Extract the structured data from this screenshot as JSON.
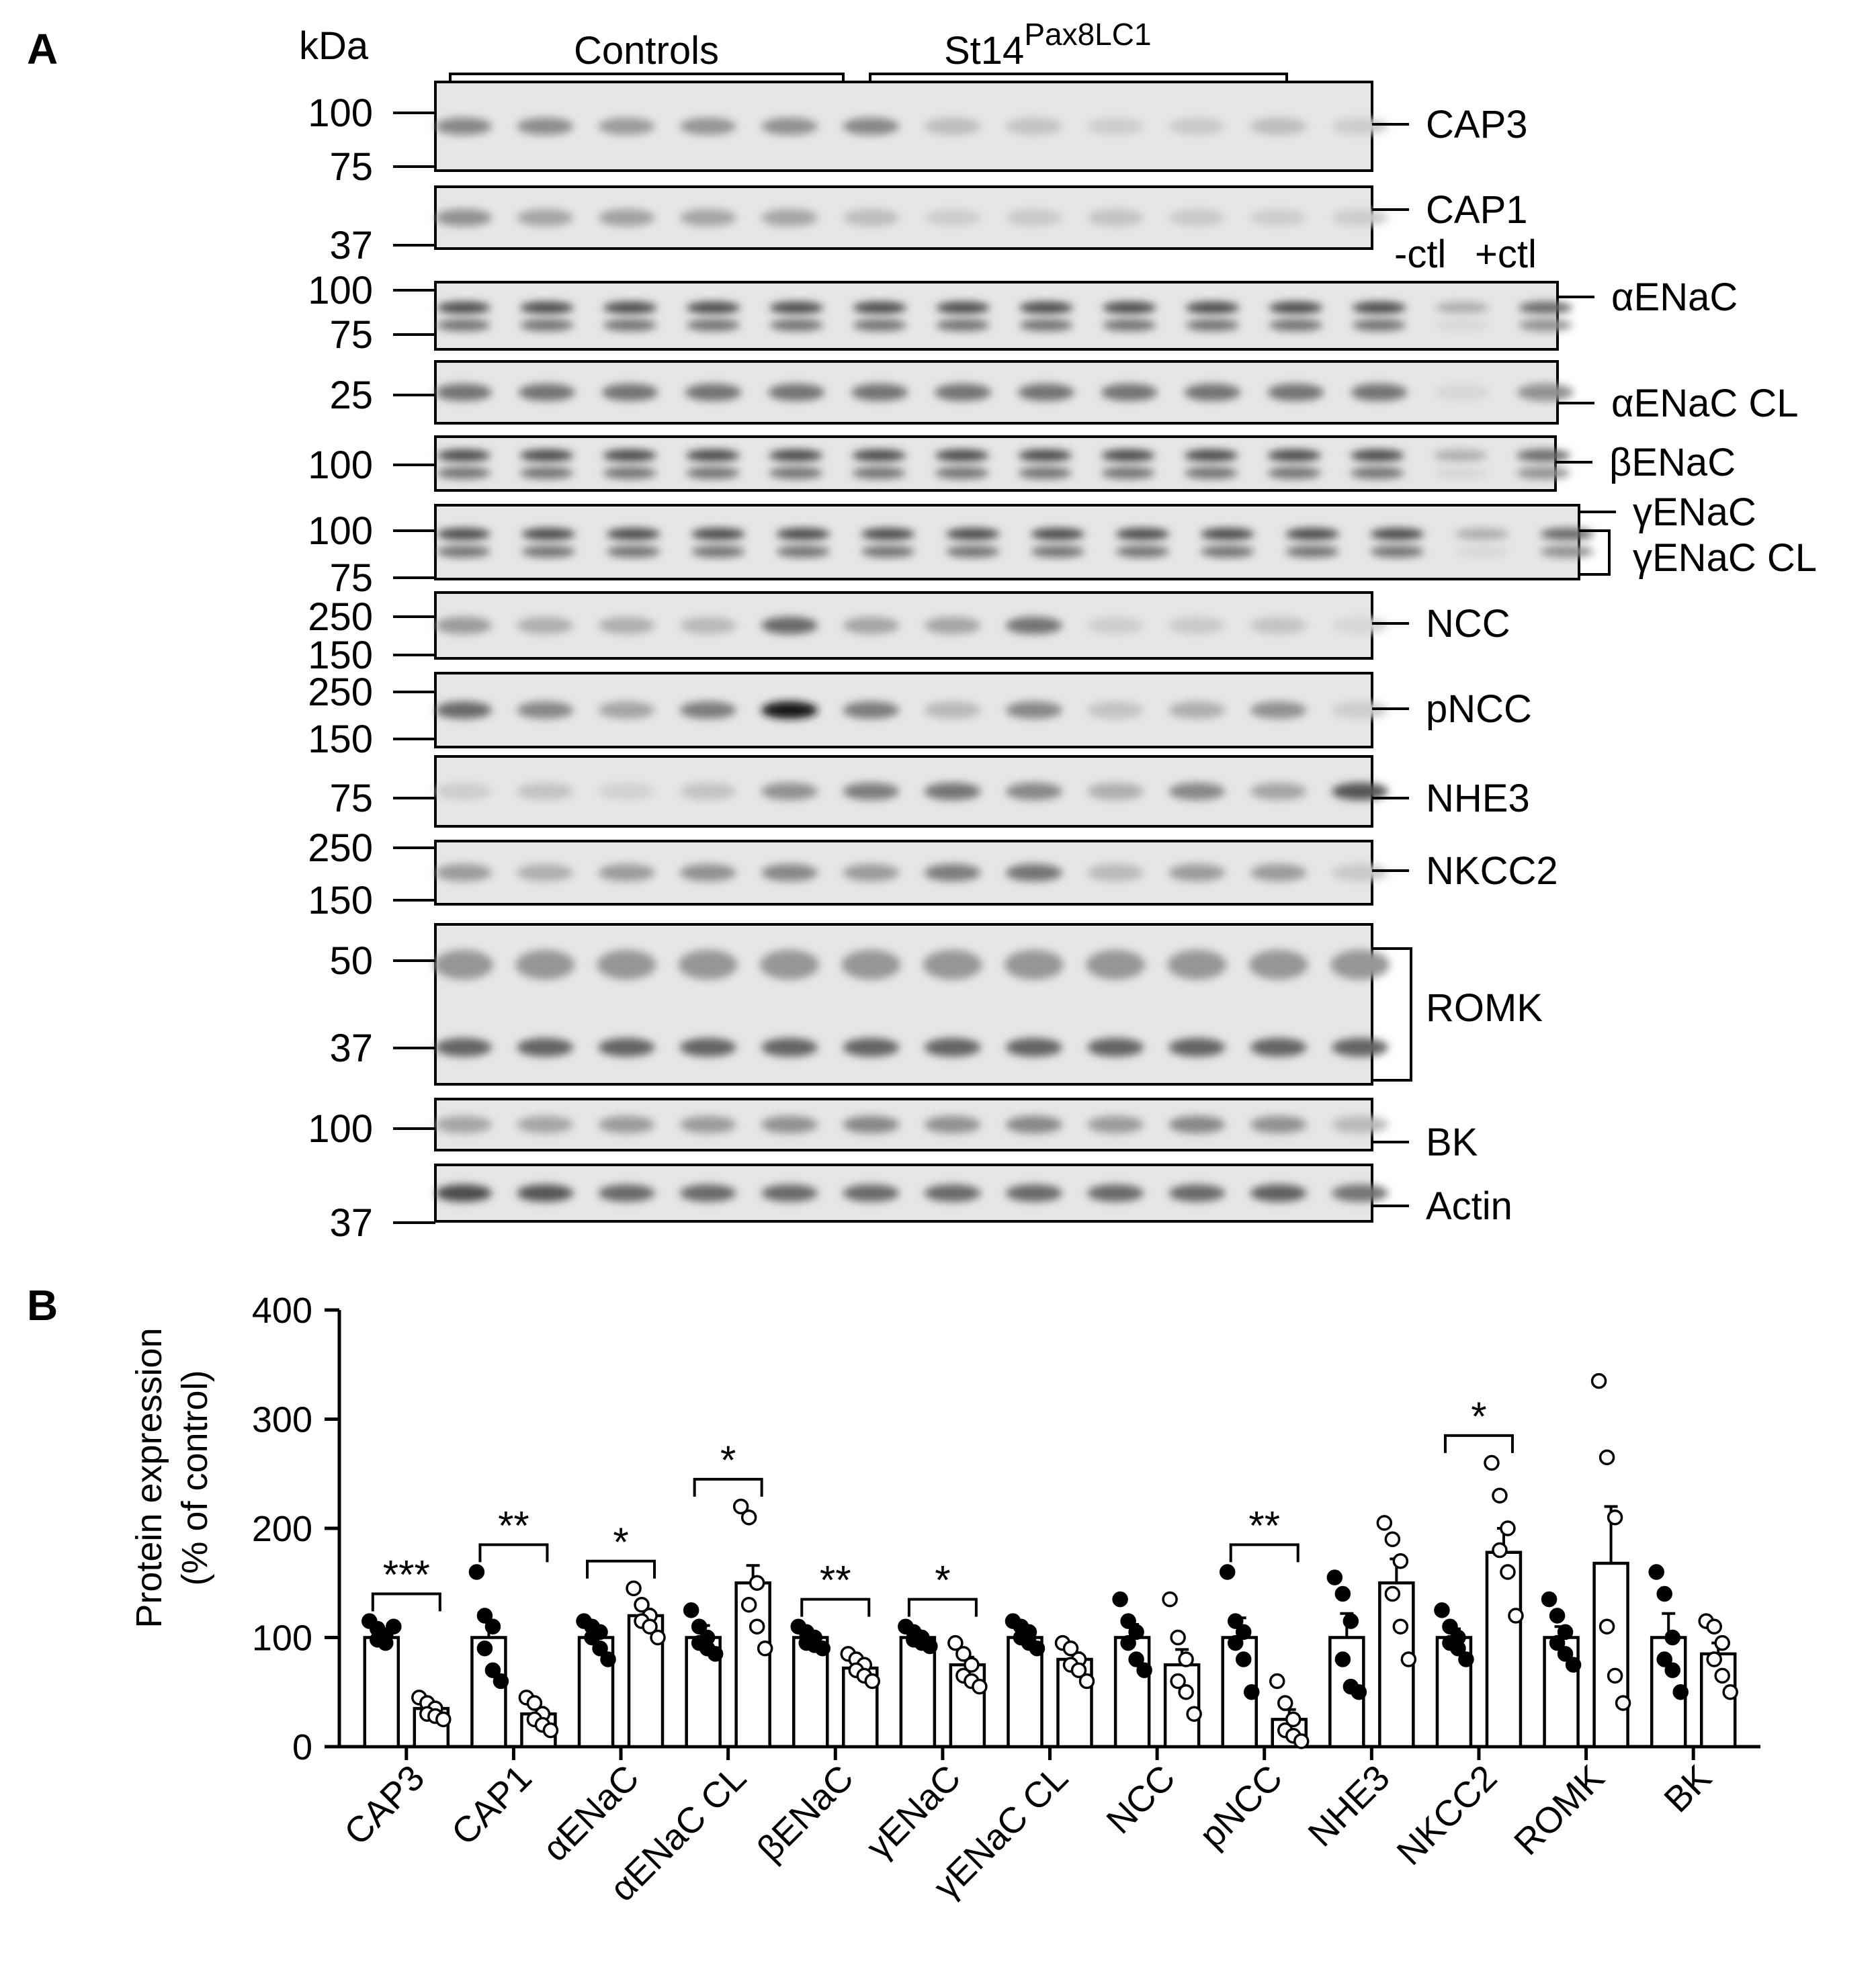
{
  "panel_a": {
    "label": "A",
    "kda_label": "kDa",
    "group_controls": "Controls",
    "group_mutant_base": "St14",
    "group_mutant_sup": "Pax8LC1",
    "neg_ctl": "-ctl",
    "pos_ctl": "+ctl",
    "blots": [
      {
        "name": "CAP3",
        "markers": [
          "100",
          "75"
        ]
      },
      {
        "name": "CAP1",
        "markers": [
          "37"
        ]
      },
      {
        "name": "αENaC",
        "markers": [
          "100",
          "75"
        ]
      },
      {
        "name": "αENaC CL",
        "markers": [
          "25"
        ]
      },
      {
        "name": "βENaC",
        "markers": [
          "100"
        ]
      },
      {
        "name": "γENaC",
        "markers": [
          "100",
          "75"
        ]
      },
      {
        "name": "γENaC CL",
        "markers": []
      },
      {
        "name": "NCC",
        "markers": [
          "250",
          "150"
        ]
      },
      {
        "name": "pNCC",
        "markers": [
          "250",
          "150"
        ]
      },
      {
        "name": "NHE3",
        "markers": [
          "75"
        ]
      },
      {
        "name": "NKCC2",
        "markers": [
          "250",
          "150"
        ]
      },
      {
        "name": "ROMK",
        "markers": [
          "50",
          "37"
        ]
      },
      {
        "name": "BK",
        "markers": [
          "100"
        ]
      },
      {
        "name": "Actin",
        "markers": [
          "37"
        ]
      }
    ],
    "band_intensity": {
      "CAP3": [
        0.45,
        0.42,
        0.35,
        0.38,
        0.4,
        0.45,
        0.18,
        0.15,
        0.1,
        0.12,
        0.18,
        0.1
      ],
      "CAP1": [
        0.4,
        0.3,
        0.32,
        0.3,
        0.3,
        0.18,
        0.1,
        0.12,
        0.15,
        0.12,
        0.1,
        0.1
      ],
      "NCC": [
        0.35,
        0.25,
        0.25,
        0.2,
        0.6,
        0.3,
        0.3,
        0.55,
        0.1,
        0.12,
        0.15,
        0.05
      ],
      "pNCC": [
        0.6,
        0.45,
        0.3,
        0.5,
        1.0,
        0.5,
        0.2,
        0.45,
        0.15,
        0.25,
        0.4,
        0.1
      ],
      "NHE3": [
        0.1,
        0.15,
        0.08,
        0.15,
        0.4,
        0.5,
        0.55,
        0.45,
        0.25,
        0.45,
        0.3,
        0.7
      ],
      "NKCC2": [
        0.35,
        0.25,
        0.35,
        0.4,
        0.45,
        0.35,
        0.5,
        0.55,
        0.2,
        0.35,
        0.35,
        0.12
      ],
      "BK": [
        0.3,
        0.3,
        0.35,
        0.35,
        0.4,
        0.45,
        0.4,
        0.45,
        0.35,
        0.45,
        0.4,
        0.2
      ],
      "Actin": [
        0.75,
        0.7,
        0.6,
        0.6,
        0.6,
        0.6,
        0.6,
        0.6,
        0.6,
        0.6,
        0.65,
        0.55
      ]
    }
  },
  "panel_b": {
    "label": "B"
  },
  "chart_data": {
    "type": "bar",
    "ylabel_line1": "Protein expression",
    "ylabel_line2": "(% of control)",
    "ylim": [
      0,
      400
    ],
    "yticks": [
      0,
      100,
      200,
      300,
      400
    ],
    "categories": [
      "CAP3",
      "CAP1",
      "αENaC",
      "αENaC CL",
      "βENaC",
      "γENaC",
      "γENaC CL",
      "NCC",
      "pNCC",
      "NHE3",
      "NKCC2",
      "ROMK",
      "BK"
    ],
    "series": [
      {
        "values": [
          100,
          100,
          100,
          100,
          100,
          100,
          100,
          100,
          100,
          100,
          100,
          100,
          100
        ],
        "sem": [
          6,
          15,
          9,
          11,
          5,
          5,
          6,
          12,
          18,
          22,
          8,
          10,
          22
        ],
        "points": [
          [
            115,
            108,
            102,
            98,
            95,
            110
          ],
          [
            160,
            120,
            110,
            90,
            70,
            60
          ],
          [
            115,
            110,
            105,
            100,
            90,
            80
          ],
          [
            125,
            110,
            100,
            95,
            90,
            85
          ],
          [
            110,
            105,
            100,
            95,
            93,
            90
          ],
          [
            110,
            105,
            100,
            98,
            95,
            92
          ],
          [
            115,
            110,
            105,
            100,
            95,
            90
          ],
          [
            135,
            115,
            105,
            95,
            80,
            70
          ],
          [
            160,
            115,
            105,
            95,
            80,
            50
          ],
          [
            155,
            140,
            115,
            80,
            55,
            50
          ],
          [
            125,
            110,
            100,
            95,
            90,
            80
          ],
          [
            135,
            120,
            105,
            95,
            85,
            75
          ],
          [
            160,
            140,
            100,
            80,
            70,
            50
          ]
        ]
      },
      {
        "values": [
          35,
          30,
          120,
          150,
          72,
          75,
          80,
          75,
          25,
          150,
          178,
          168,
          85
        ],
        "sem": [
          5,
          6,
          6,
          16,
          5,
          7,
          6,
          14,
          9,
          22,
          22,
          52,
          10
        ],
        "points": [
          [
            45,
            40,
            35,
            30,
            28,
            25
          ],
          [
            45,
            40,
            30,
            25,
            20,
            15
          ],
          [
            145,
            130,
            120,
            115,
            110,
            100
          ],
          [
            220,
            210,
            150,
            130,
            110,
            90
          ],
          [
            85,
            80,
            75,
            70,
            65,
            60
          ],
          [
            95,
            85,
            75,
            65,
            60,
            55
          ],
          [
            95,
            90,
            80,
            75,
            70,
            60
          ],
          [
            135,
            100,
            80,
            60,
            50,
            30
          ],
          [
            60,
            40,
            25,
            15,
            10,
            5
          ],
          [
            205,
            190,
            170,
            140,
            110,
            80
          ],
          [
            260,
            230,
            200,
            180,
            160,
            120
          ],
          [
            335,
            265,
            210,
            110,
            65,
            40
          ],
          [
            115,
            110,
            95,
            80,
            65,
            50
          ]
        ]
      }
    ],
    "significance": [
      {
        "category": "CAP3",
        "label": "***"
      },
      {
        "category": "CAP1",
        "label": "**"
      },
      {
        "category": "αENaC",
        "label": "*"
      },
      {
        "category": "αENaC CL",
        "label": "*"
      },
      {
        "category": "βENaC",
        "label": "**"
      },
      {
        "category": "γENaC",
        "label": "*"
      },
      {
        "category": "pNCC",
        "label": "**"
      },
      {
        "category": "NKCC2",
        "label": "*"
      }
    ],
    "legend": "none",
    "grid": false
  }
}
